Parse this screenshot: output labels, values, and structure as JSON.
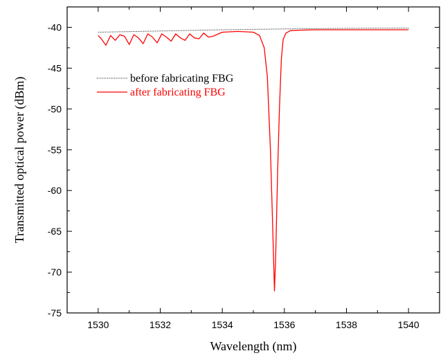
{
  "chart_data": {
    "type": "line",
    "title": "",
    "xlabel": "Wavelength (nm)",
    "ylabel": "Transmitted optical power (dBm)",
    "xlim": [
      1529,
      1541
    ],
    "ylim": [
      -75,
      -37.5
    ],
    "xticks": [
      1530,
      1532,
      1534,
      1536,
      1538,
      1540
    ],
    "yticks": [
      -75,
      -70,
      -65,
      -60,
      -55,
      -50,
      -45,
      -40
    ],
    "xtick_labels": [
      "1530",
      "1532",
      "1534",
      "1536",
      "1538",
      "1540"
    ],
    "ytick_labels": [
      "-75",
      "-70",
      "-65",
      "-60",
      "-55",
      "-50",
      "-45",
      "-40"
    ],
    "grid": false,
    "legend_position": "left",
    "series": [
      {
        "name": "before fabricating FBG",
        "color": "#000000",
        "style": "dotted",
        "x": [
          1530.0,
          1532.0,
          1534.0,
          1536.0,
          1538.0,
          1540.0
        ],
        "y": [
          -40.6,
          -40.45,
          -40.3,
          -40.2,
          -40.12,
          -40.1
        ]
      },
      {
        "name": "after fabricating FBG",
        "color": "#ff0000",
        "style": "solid",
        "x": [
          1530.0,
          1530.1,
          1530.25,
          1530.4,
          1530.55,
          1530.7,
          1530.85,
          1531.0,
          1531.15,
          1531.3,
          1531.45,
          1531.6,
          1531.75,
          1531.9,
          1532.05,
          1532.2,
          1532.35,
          1532.5,
          1532.65,
          1532.8,
          1532.95,
          1533.1,
          1533.25,
          1533.4,
          1533.55,
          1533.7,
          1534.0,
          1534.5,
          1535.0,
          1535.2,
          1535.35,
          1535.45,
          1535.55,
          1535.62,
          1535.68,
          1535.72,
          1535.78,
          1535.84,
          1535.9,
          1535.96,
          1536.05,
          1536.2,
          1536.5,
          1537.0,
          1538.0,
          1539.0,
          1540.0
        ],
        "y": [
          -41.0,
          -41.4,
          -42.2,
          -41.0,
          -41.6,
          -40.9,
          -41.1,
          -42.1,
          -40.9,
          -41.3,
          -42.0,
          -40.8,
          -41.2,
          -41.9,
          -40.8,
          -41.2,
          -41.7,
          -40.8,
          -41.3,
          -41.6,
          -40.8,
          -41.3,
          -41.4,
          -40.7,
          -41.2,
          -41.1,
          -40.6,
          -40.5,
          -40.6,
          -41.0,
          -42.5,
          -46.0,
          -55.0,
          -64.0,
          -72.3,
          -68.0,
          -58.0,
          -50.0,
          -44.0,
          -41.5,
          -40.7,
          -40.4,
          -40.35,
          -40.3,
          -40.3,
          -40.3,
          -40.3
        ]
      }
    ]
  }
}
